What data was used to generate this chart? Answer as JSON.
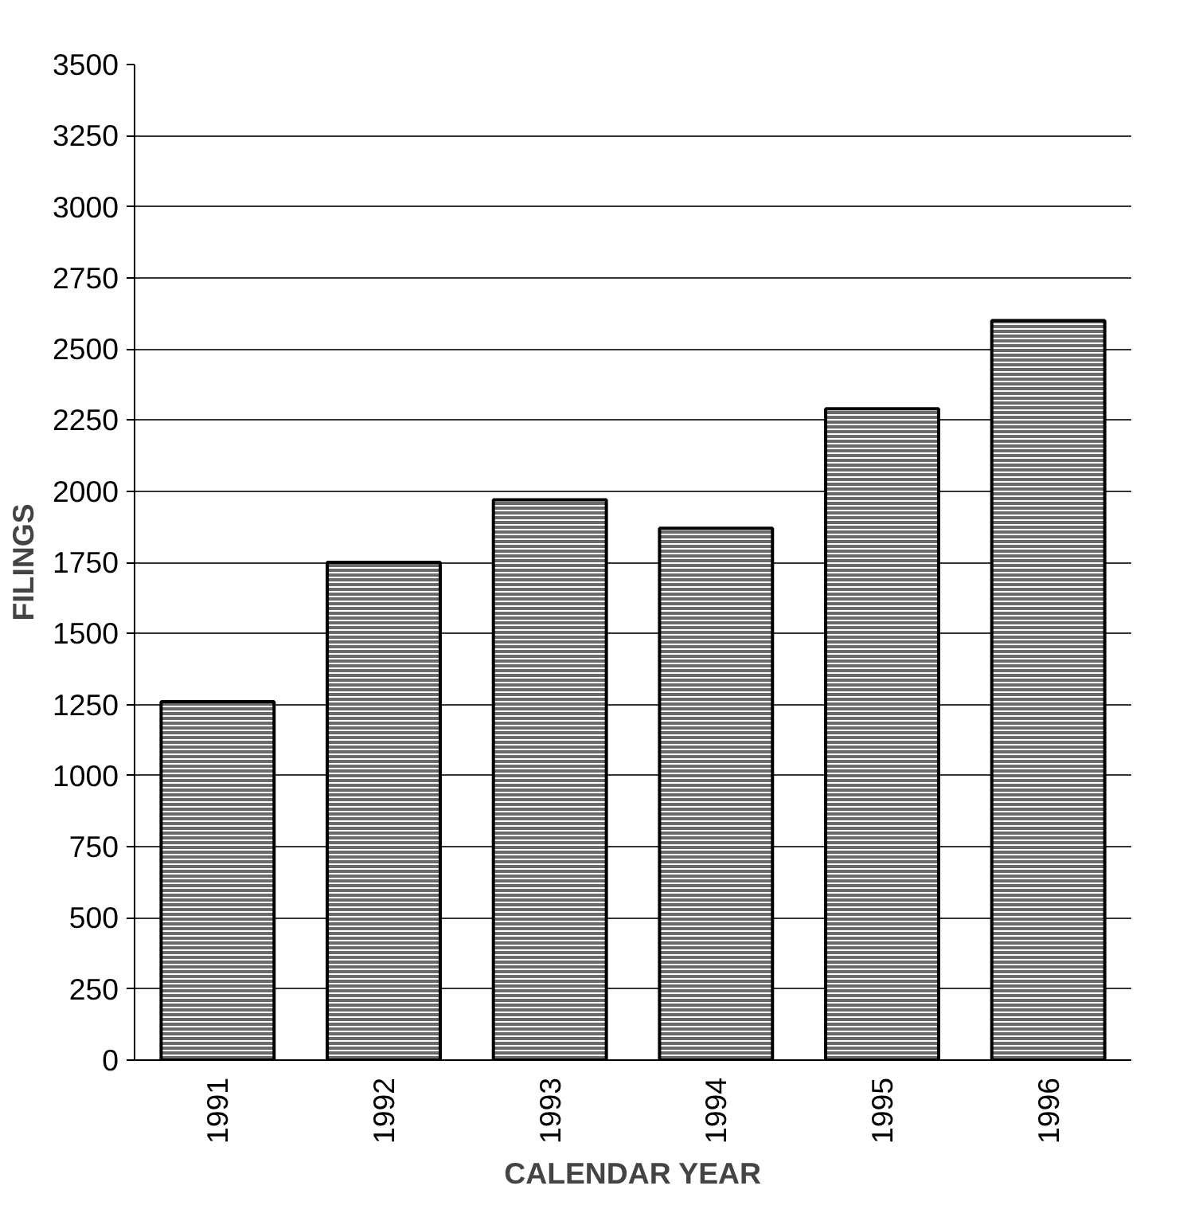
{
  "chart_data": {
    "type": "bar",
    "xlabel": "CALENDAR YEAR",
    "ylabel": "FILINGS",
    "categories": [
      "1991",
      "1992",
      "1993",
      "1994",
      "1995",
      "1996"
    ],
    "values": [
      1260,
      1750,
      1970,
      1870,
      2290,
      2600
    ],
    "color": "#6a6a6a",
    "ylim": [
      0,
      3500
    ],
    "yticks": [
      0,
      250,
      500,
      750,
      1000,
      1250,
      1500,
      1750,
      2000,
      2250,
      2500,
      2750,
      3000,
      3250,
      3500
    ],
    "grid": "y"
  }
}
